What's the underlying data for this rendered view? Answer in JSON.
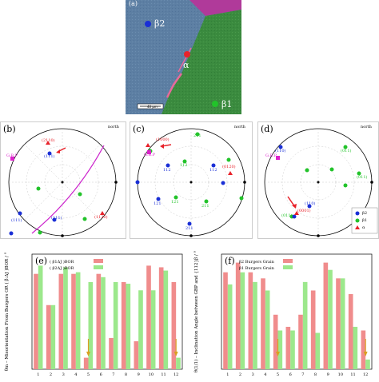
{
  "micrograph": {
    "panel_label": "(a)",
    "beta2_label": "β2",
    "alpha_label": "α",
    "beta1_label": "β1",
    "scale_bar_text": "40 μm",
    "colors": {
      "beta2_grain": "#5a7fa6",
      "beta1_grain": "#3a8a3e",
      "magenta_grain": "#b03a9a",
      "alpha_phase": "#e25c8a",
      "beta2_marker": "#1a2fd6",
      "beta1_marker": "#22c32a",
      "alpha_marker": "#e8222a"
    }
  },
  "pole_figures": {
    "b": {
      "panel_label": "(b)",
      "north": "north",
      "gbp": "G.B.P",
      "labels": {
        "p2110": "(2110)",
        "p111a": "(111)",
        "p111b": "(111)",
        "p111c": "(111)",
        "p1120": "(1120)"
      }
    },
    "c": {
      "panel_label": "(c)",
      "north": "north",
      "gbp": "G.B.P",
      "labels": {
        "l1000": "(1000)",
        "l0120": "(0120)",
        "i112a": "112",
        "i112b": "112",
        "i112c": "112",
        "i121a": "121",
        "i121b": "121",
        "i211a": "211",
        "i211b": "211",
        "i211c": "211"
      }
    },
    "d": {
      "panel_label": "(d)",
      "north": "north",
      "gbp": "G.B.P",
      "labels": {
        "l110a": "(110)",
        "l011a": "(011)",
        "l011b": "(011)",
        "l0001": "(0001)",
        "l110b": "(110)",
        "l011c": "(011)"
      },
      "legend": [
        "β2",
        "β1",
        "α"
      ]
    }
  },
  "chart_data": [
    {
      "type": "bar",
      "panel_label": "(e)",
      "ylabel": "θm – Misorientation From Burgers OR ( β:ΔJ )BOR / °",
      "series": [
        {
          "name": "( β1ΔJ )BOR",
          "color": "#f08c8c",
          "values": [
            29,
            19.5,
            29,
            29,
            3.5,
            29,
            9.5,
            26.5,
            8.5,
            31.5,
            31,
            26.5
          ]
        },
        {
          "name": "( β2ΔJ )BOR",
          "color": "#9ce88c",
          "values": [
            31.5,
            19.5,
            31,
            29.5,
            26.5,
            28,
            26.5,
            26,
            24,
            24,
            30,
            3.5
          ]
        }
      ],
      "categories": [
        "1",
        "2",
        "3",
        "4",
        "5",
        "6",
        "7",
        "8",
        "9",
        "10",
        "11",
        "12"
      ],
      "ylim": [
        0,
        35
      ],
      "arrows_at": [
        "5",
        "12"
      ]
    },
    {
      "type": "bar",
      "panel_label": "(f)",
      "ylabel": "θ(1/1) – Inclination Angle between GBP and {112}β / °",
      "series": [
        {
          "name": "β2 Burgers Grain",
          "color": "#f08c8c",
          "values": [
            80,
            88,
            80,
            75,
            45,
            35,
            45,
            65,
            88,
            75,
            62,
            32
          ]
        },
        {
          "name": "β1 Burgers Grain",
          "color": "#9ce88c",
          "values": [
            70,
            80,
            72,
            65,
            32,
            32,
            72,
            30,
            82,
            75,
            35,
            8
          ]
        }
      ],
      "categories": [
        "1",
        "2",
        "3",
        "4",
        "5",
        "6",
        "7",
        "8",
        "9",
        "10",
        "11",
        "12"
      ],
      "ylim": [
        0,
        95
      ],
      "arrows_at": [
        "5",
        "12"
      ]
    }
  ]
}
